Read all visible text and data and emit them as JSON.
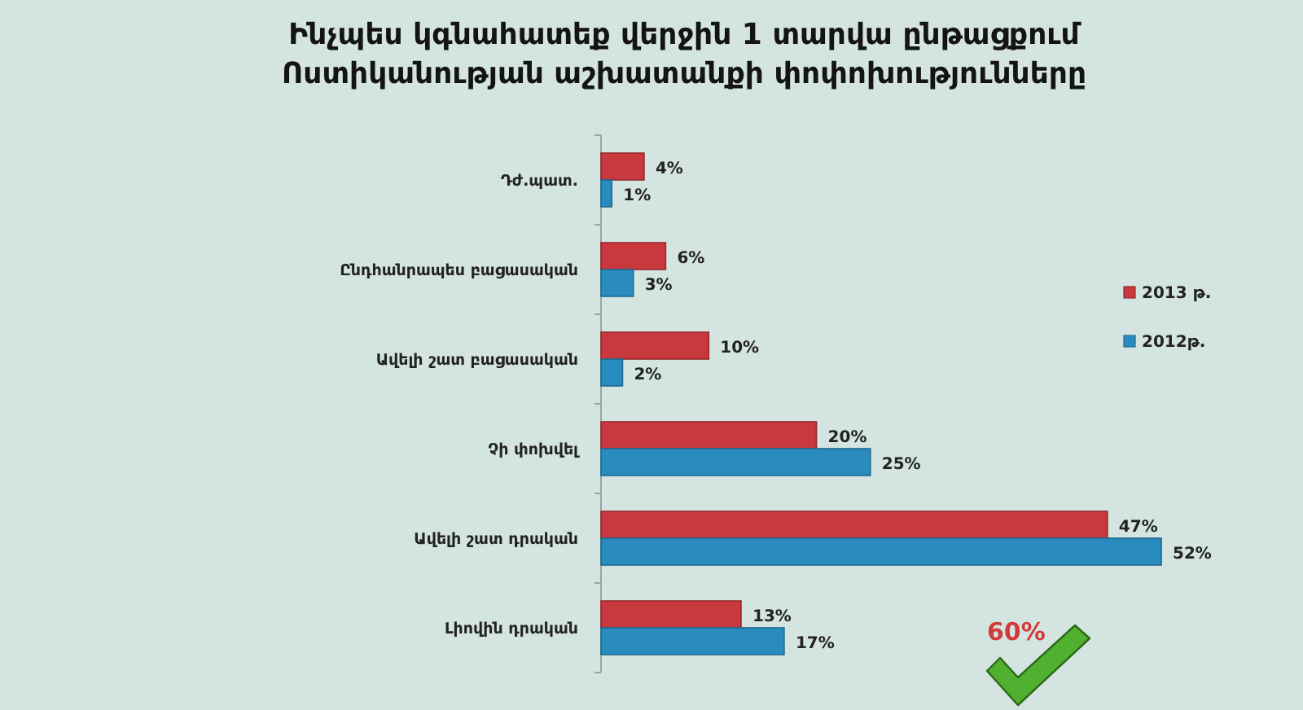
{
  "chart_data": {
    "type": "bar",
    "orientation": "horizontal",
    "title": "Ինչպես կգնահատեք վերջին 1 տարվա ընթացքում\nՈստիկանության աշխատանքի փոփոխությունները",
    "categories": [
      "Դժ.պատ.",
      "Ընդհանրապես բացասական",
      "Ավելի շատ բացասական",
      "Չի փոխվել",
      "Ավելի շատ դրական",
      "Լիովին դրական"
    ],
    "series": [
      {
        "name": "2013 թ.",
        "color": "#c8383c",
        "values": [
          4,
          6,
          10,
          20,
          47,
          13
        ],
        "value_labels": [
          "4%",
          "6%",
          "10%",
          "20%",
          "47%",
          "13%"
        ]
      },
      {
        "name": "2012թ.",
        "color": "#2a8cbe",
        "values": [
          1,
          3,
          2,
          25,
          52,
          17
        ],
        "value_labels": [
          "1%",
          "3%",
          "2%",
          "25%",
          "52%",
          "17%"
        ]
      }
    ],
    "legend": "right",
    "annotations": [
      "60%"
    ]
  }
}
